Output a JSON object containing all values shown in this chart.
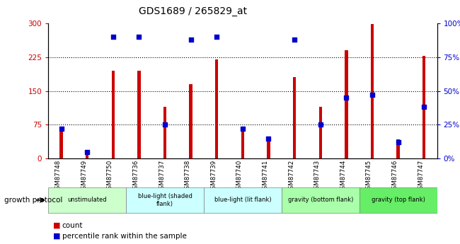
{
  "title": "GDS1689 / 265829_at",
  "samples": [
    "GSM87748",
    "GSM87749",
    "GSM87750",
    "GSM87736",
    "GSM87737",
    "GSM87738",
    "GSM87739",
    "GSM87740",
    "GSM87741",
    "GSM87742",
    "GSM87743",
    "GSM87744",
    "GSM87745",
    "GSM87746",
    "GSM87747"
  ],
  "counts": [
    65,
    15,
    195,
    195,
    115,
    165,
    220,
    68,
    45,
    180,
    115,
    240,
    298,
    42,
    228
  ],
  "percentile_ranks": [
    22,
    5,
    90,
    90,
    25,
    88,
    90,
    22,
    15,
    88,
    25,
    45,
    47,
    12,
    38
  ],
  "bar_color": "#cc0000",
  "dot_color": "#0000cc",
  "groups": [
    {
      "label": "unstimulated",
      "start": 0,
      "end": 3,
      "color": "#ccffcc"
    },
    {
      "label": "blue-light (shaded\nflank)",
      "start": 3,
      "end": 6,
      "color": "#ccffff"
    },
    {
      "label": "blue-light (lit flank)",
      "start": 6,
      "end": 9,
      "color": "#ccffff"
    },
    {
      "label": "gravity (bottom flank)",
      "start": 9,
      "end": 12,
      "color": "#aaffaa"
    },
    {
      "label": "gravity (top flank)",
      "start": 12,
      "end": 15,
      "color": "#66ee66"
    }
  ],
  "group_label": "growth protocol",
  "ylim_left": [
    0,
    300
  ],
  "ylim_right": [
    0,
    100
  ],
  "yticks_left": [
    0,
    75,
    150,
    225,
    300
  ],
  "yticks_right": [
    0,
    25,
    50,
    75,
    100
  ],
  "ytick_labels_left": [
    "0",
    "75",
    "150",
    "225",
    "300"
  ],
  "ytick_labels_right": [
    "0%",
    "25%",
    "50%",
    "75%",
    "100%"
  ],
  "legend_count_label": "count",
  "legend_pct_label": "percentile rank within the sample",
  "bar_width": 0.12,
  "dot_size": 22,
  "left_tick_color": "#cc0000",
  "right_tick_color": "#0000cc",
  "grid_color": "#000000",
  "sample_bg_color": "#cccccc",
  "plot_bg_color": "#ffffff",
  "fig_bg_color": "#ffffff"
}
